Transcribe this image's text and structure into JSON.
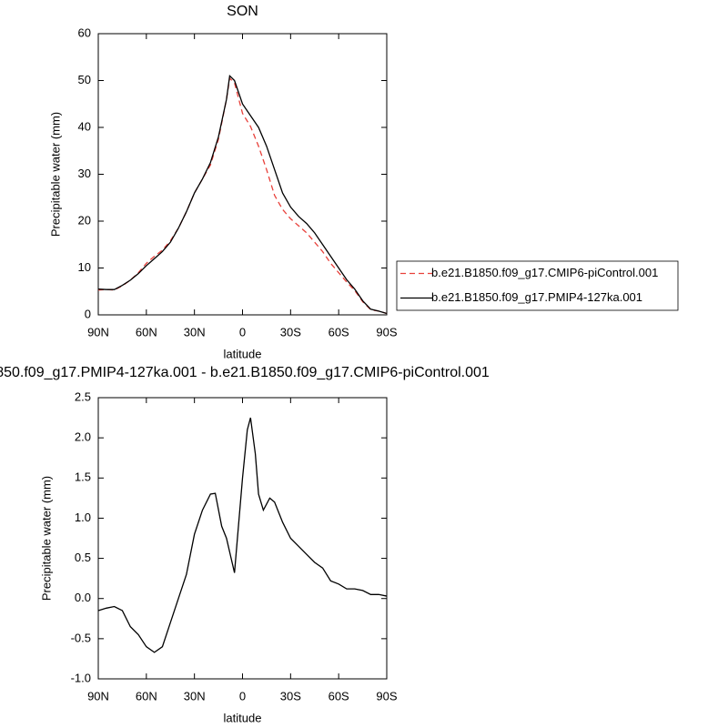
{
  "chart_data": [
    {
      "type": "line",
      "title": "SON",
      "xlabel": "latitude",
      "ylabel": "Precipitable water (mm)",
      "x": [
        90,
        85,
        80,
        75,
        70,
        65,
        60,
        55,
        50,
        45,
        40,
        35,
        30,
        25,
        20,
        15,
        10,
        8,
        5,
        0,
        -5,
        -10,
        -15,
        -20,
        -25,
        -30,
        -35,
        -40,
        -45,
        -50,
        -55,
        -60,
        -65,
        -70,
        -75,
        -80,
        -85,
        -90
      ],
      "series": [
        {
          "name": "b.e21.B1850.f09_g17.CMIP6-piControl.001",
          "color": "#e8403a",
          "dash": "dashed",
          "values": [
            5.3,
            5.4,
            5.3,
            6.2,
            7.4,
            9,
            11,
            12.5,
            13.8,
            15.8,
            18.5,
            22,
            26,
            29,
            32,
            37.5,
            46,
            50.5,
            49.5,
            43,
            40.2,
            36,
            31,
            25.5,
            22.5,
            20.5,
            19,
            17.5,
            15.5,
            13.5,
            11,
            9,
            7,
            5.2,
            2.8,
            1.1,
            0.8,
            0.3
          ]
        },
        {
          "name": "b.e21.B1850.f09_g17.PMIP4-127ka.001",
          "color": "#000000",
          "dash": "solid",
          "values": [
            5.5,
            5.4,
            5.4,
            6.3,
            7.4,
            8.8,
            10.5,
            12,
            13.5,
            15.5,
            18.5,
            22,
            26,
            29,
            32.5,
            38,
            46,
            51,
            50,
            45,
            42.5,
            40,
            36,
            31,
            26,
            23,
            21,
            19.5,
            17.5,
            15,
            12.5,
            10,
            7.5,
            5.5,
            3,
            1.2,
            0.8,
            0.3
          ]
        }
      ],
      "xlim": [
        90,
        -90
      ],
      "xticks": [
        {
          "value": 90,
          "label": "90N"
        },
        {
          "value": 60,
          "label": "60N"
        },
        {
          "value": 30,
          "label": "30N"
        },
        0,
        {
          "value": -30,
          "label": "30S"
        },
        {
          "value": -60,
          "label": "60S"
        },
        {
          "value": -90,
          "label": "90S"
        }
      ],
      "ylim": [
        0,
        60
      ],
      "yticks": [
        0,
        10,
        20,
        30,
        40,
        50,
        60
      ],
      "legend": "right"
    },
    {
      "type": "line",
      "title": "850.f09_g17.PMIP4-127ka.001 - b.e21.B1850.f09_g17.CMIP6-piControl.001",
      "xlabel": "latitude",
      "ylabel": "Precipitable water (mm)",
      "x": [
        90,
        85,
        80,
        75,
        70,
        65,
        60,
        55,
        50,
        45,
        40,
        35,
        30,
        25,
        20,
        17,
        13,
        10,
        5,
        0,
        -3,
        -5,
        -8,
        -10,
        -13,
        -17,
        -20,
        -25,
        -30,
        -35,
        -40,
        -45,
        -50,
        -55,
        -60,
        -65,
        -70,
        -75,
        -80,
        -85,
        -90
      ],
      "color": "#000000",
      "values": [
        -0.15,
        -0.12,
        -0.1,
        -0.15,
        -0.35,
        -0.45,
        -0.6,
        -0.67,
        -0.6,
        -0.3,
        0,
        0.3,
        0.8,
        1.1,
        1.3,
        1.31,
        0.9,
        0.75,
        0.32,
        1.5,
        2.1,
        2.25,
        1.8,
        1.3,
        1.1,
        1.25,
        1.2,
        0.95,
        0.75,
        0.65,
        0.55,
        0.45,
        0.38,
        0.22,
        0.18,
        0.12,
        0.12,
        0.1,
        0.05,
        0.05,
        0.03
      ],
      "xlim": [
        90,
        -90
      ],
      "xticks": [
        {
          "value": 90,
          "label": "90N"
        },
        {
          "value": 60,
          "label": "60N"
        },
        {
          "value": 30,
          "label": "30N"
        },
        0,
        {
          "value": -30,
          "label": "30S"
        },
        {
          "value": -60,
          "label": "60S"
        },
        {
          "value": -90,
          "label": "90S"
        }
      ],
      "ylim": [
        -1,
        2.5
      ],
      "yticks": [
        {
          "value": -1,
          "label": "-1.0"
        },
        -0.5,
        {
          "value": 0,
          "label": "0.0"
        },
        0.5,
        {
          "value": 1,
          "label": "1.0"
        },
        1.5,
        {
          "value": 2,
          "label": "2.0"
        },
        2.5
      ]
    }
  ]
}
